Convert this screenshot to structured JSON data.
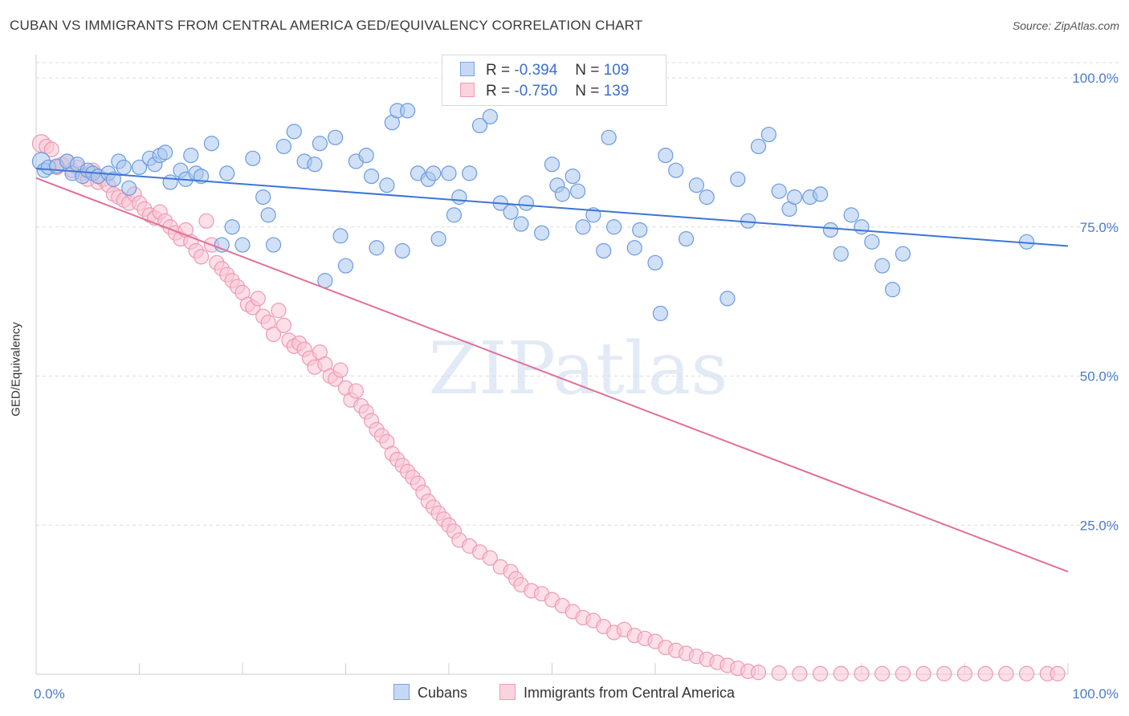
{
  "title": "CUBAN VS IMMIGRANTS FROM CENTRAL AMERICA GED/EQUIVALENCY CORRELATION CHART",
  "source": "Source: ZipAtlas.com",
  "watermark": "ZIPatlas",
  "legend": {
    "rows": [
      {
        "r_label": "R =",
        "r_value": "-0.394",
        "n_label": "N =",
        "n_value": "109",
        "color": "#8fb4ea"
      },
      {
        "r_label": "R =",
        "r_value": "-0.750",
        "n_label": "N =",
        "n_value": "139",
        "color": "#f4a8c0"
      }
    ]
  },
  "bottom_legend": [
    {
      "label": "Cubans",
      "color": "#8fb4ea"
    },
    {
      "label": "Immigrants from Central America",
      "color": "#f4a8c0"
    }
  ],
  "chart_data": {
    "type": "scatter",
    "title": "CUBAN VS IMMIGRANTS FROM CENTRAL AMERICA GED/EQUIVALENCY CORRELATION CHART",
    "xlabel": "",
    "ylabel": "GED/Equivalency",
    "xlim": [
      0,
      100
    ],
    "ylim": [
      0,
      102
    ],
    "x_tick_labels": [
      "0.0%",
      "100.0%"
    ],
    "y_ticks": [
      25,
      50,
      75,
      100
    ],
    "y_tick_labels": [
      "25.0%",
      "50.0%",
      "75.0%",
      "100.0%"
    ],
    "grid": "horizontal dashed",
    "colors": {
      "cubans": "#5b8fdb",
      "cubans_fill": "#a9c6ee",
      "central": "#e2729b",
      "central_fill": "#f7b9cc"
    },
    "series": [
      {
        "name": "Cubans",
        "trend": {
          "x0": 0,
          "y0": 84.8,
          "x1": 100,
          "y1": 71.8
        },
        "points": [
          [
            0.5,
            86
          ],
          [
            0.8,
            84.5
          ],
          [
            1.2,
            85
          ],
          [
            2,
            85.2
          ],
          [
            3,
            86
          ],
          [
            3.5,
            84
          ],
          [
            4,
            85.5
          ],
          [
            4.5,
            83.5
          ],
          [
            5,
            84.5
          ],
          [
            5.5,
            84
          ],
          [
            6,
            83.5
          ],
          [
            7,
            84
          ],
          [
            7.5,
            83
          ],
          [
            8,
            86
          ],
          [
            8.5,
            85
          ],
          [
            9,
            81.5
          ],
          [
            10,
            85
          ],
          [
            11,
            86.5
          ],
          [
            11.5,
            85.5
          ],
          [
            12,
            87
          ],
          [
            12.5,
            87.5
          ],
          [
            13,
            82.5
          ],
          [
            14,
            84.5
          ],
          [
            14.5,
            83
          ],
          [
            15,
            87
          ],
          [
            15.5,
            84
          ],
          [
            16,
            83.5
          ],
          [
            17,
            89
          ],
          [
            18,
            72
          ],
          [
            18.5,
            84
          ],
          [
            19,
            75
          ],
          [
            20,
            72
          ],
          [
            21,
            86.5
          ],
          [
            22,
            80
          ],
          [
            22.5,
            77
          ],
          [
            23,
            72
          ],
          [
            24,
            88.5
          ],
          [
            25,
            91
          ],
          [
            26,
            86
          ],
          [
            27,
            85.5
          ],
          [
            27.5,
            89
          ],
          [
            28,
            66
          ],
          [
            29,
            90
          ],
          [
            29.5,
            73.5
          ],
          [
            30,
            68.5
          ],
          [
            31,
            86
          ],
          [
            32,
            87
          ],
          [
            32.5,
            83.5
          ],
          [
            33,
            71.5
          ],
          [
            34,
            82
          ],
          [
            34.5,
            92.5
          ],
          [
            35,
            94.5
          ],
          [
            35.5,
            71
          ],
          [
            36,
            94.5
          ],
          [
            37,
            84
          ],
          [
            38,
            83
          ],
          [
            38.5,
            84
          ],
          [
            39,
            73
          ],
          [
            40,
            84
          ],
          [
            40.5,
            77
          ],
          [
            41,
            80
          ],
          [
            42,
            84
          ],
          [
            43,
            92
          ],
          [
            44,
            93.5
          ],
          [
            45,
            79
          ],
          [
            46,
            77.5
          ],
          [
            47,
            75.5
          ],
          [
            47.5,
            79
          ],
          [
            49,
            74
          ],
          [
            50,
            85.5
          ],
          [
            50.5,
            82
          ],
          [
            51,
            80.5
          ],
          [
            52,
            83.5
          ],
          [
            52.5,
            81
          ],
          [
            53,
            75
          ],
          [
            54,
            77
          ],
          [
            55,
            71
          ],
          [
            55.5,
            90
          ],
          [
            56,
            75
          ],
          [
            58,
            71.5
          ],
          [
            58.5,
            74.5
          ],
          [
            60,
            69
          ],
          [
            60.5,
            60.5
          ],
          [
            61,
            87
          ],
          [
            62,
            84.5
          ],
          [
            63,
            73
          ],
          [
            64,
            82
          ],
          [
            65,
            80
          ],
          [
            67,
            63
          ],
          [
            68,
            83
          ],
          [
            69,
            76
          ],
          [
            70,
            88.5
          ],
          [
            71,
            90.5
          ],
          [
            72,
            81
          ],
          [
            73,
            78
          ],
          [
            73.5,
            80
          ],
          [
            75,
            80
          ],
          [
            76,
            80.5
          ],
          [
            77,
            74.5
          ],
          [
            78,
            70.5
          ],
          [
            79,
            77
          ],
          [
            80,
            75
          ],
          [
            81,
            72.5
          ],
          [
            82,
            68.5
          ],
          [
            83,
            64.5
          ],
          [
            84,
            70.5
          ],
          [
            96,
            72.5
          ]
        ]
      },
      {
        "name": "Immigrants from Central America",
        "trend": {
          "x0": 0,
          "y0": 83.2,
          "x1": 100,
          "y1": 17.2
        },
        "points": [
          [
            0.5,
            89
          ],
          [
            1,
            88.5
          ],
          [
            1.5,
            88
          ],
          [
            2,
            85
          ],
          [
            2.5,
            85.5
          ],
          [
            3,
            86
          ],
          [
            3.5,
            84.5
          ],
          [
            4,
            85
          ],
          [
            4.5,
            84
          ],
          [
            5,
            83
          ],
          [
            5.5,
            84.5
          ],
          [
            6,
            82.5
          ],
          [
            6.5,
            83
          ],
          [
            7,
            82
          ],
          [
            7.5,
            80.5
          ],
          [
            8,
            80
          ],
          [
            8.5,
            79.5
          ],
          [
            9,
            79
          ],
          [
            9.5,
            80.5
          ],
          [
            10,
            79
          ],
          [
            10.5,
            78
          ],
          [
            11,
            77
          ],
          [
            11.5,
            76.5
          ],
          [
            12,
            77.5
          ],
          [
            12.5,
            76
          ],
          [
            13,
            75
          ],
          [
            13.5,
            74
          ],
          [
            14,
            73
          ],
          [
            14.5,
            74.5
          ],
          [
            15,
            72.5
          ],
          [
            15.5,
            71
          ],
          [
            16,
            70
          ],
          [
            16.5,
            76
          ],
          [
            17,
            72
          ],
          [
            17.5,
            69
          ],
          [
            18,
            68
          ],
          [
            18.5,
            67
          ],
          [
            19,
            66
          ],
          [
            19.5,
            65
          ],
          [
            20,
            64
          ],
          [
            20.5,
            62
          ],
          [
            21,
            61.5
          ],
          [
            21.5,
            63
          ],
          [
            22,
            60
          ],
          [
            22.5,
            59
          ],
          [
            23,
            57
          ],
          [
            23.5,
            61
          ],
          [
            24,
            58.5
          ],
          [
            24.5,
            56
          ],
          [
            25,
            55
          ],
          [
            25.5,
            55.5
          ],
          [
            26,
            54.5
          ],
          [
            26.5,
            53
          ],
          [
            27,
            51.5
          ],
          [
            27.5,
            54
          ],
          [
            28,
            52
          ],
          [
            28.5,
            50
          ],
          [
            29,
            49.5
          ],
          [
            29.5,
            51
          ],
          [
            30,
            48
          ],
          [
            30.5,
            46
          ],
          [
            31,
            47.5
          ],
          [
            31.5,
            45
          ],
          [
            32,
            44
          ],
          [
            32.5,
            42.5
          ],
          [
            33,
            41
          ],
          [
            33.5,
            40
          ],
          [
            34,
            39
          ],
          [
            34.5,
            37
          ],
          [
            35,
            36
          ],
          [
            35.5,
            35
          ],
          [
            36,
            34
          ],
          [
            36.5,
            33
          ],
          [
            37,
            32
          ],
          [
            37.5,
            30.5
          ],
          [
            38,
            29
          ],
          [
            38.5,
            28
          ],
          [
            39,
            27
          ],
          [
            39.5,
            26
          ],
          [
            40,
            25
          ],
          [
            40.5,
            24
          ],
          [
            41,
            22.5
          ],
          [
            42,
            21.5
          ],
          [
            43,
            20.5
          ],
          [
            44,
            19.5
          ],
          [
            45,
            18
          ],
          [
            46,
            17.2
          ],
          [
            46.5,
            16
          ],
          [
            47,
            15
          ],
          [
            48,
            14
          ],
          [
            49,
            13.5
          ],
          [
            50,
            12.5
          ],
          [
            51,
            11.5
          ],
          [
            52,
            10.5
          ],
          [
            53,
            9.5
          ],
          [
            54,
            9
          ],
          [
            55,
            8
          ],
          [
            56,
            7
          ],
          [
            57,
            7.5
          ],
          [
            58,
            6.5
          ],
          [
            59,
            6
          ],
          [
            60,
            5.5
          ],
          [
            61,
            4.5
          ],
          [
            62,
            4
          ],
          [
            63,
            3.5
          ],
          [
            64,
            3
          ],
          [
            65,
            2.5
          ],
          [
            66,
            2
          ],
          [
            67,
            1.5
          ],
          [
            68,
            1
          ],
          [
            69,
            0.5
          ],
          [
            70,
            0.3
          ],
          [
            72,
            0.2
          ],
          [
            74,
            0.1
          ],
          [
            76,
            0.1
          ],
          [
            78,
            0.1
          ],
          [
            80,
            0.1
          ],
          [
            82,
            0.1
          ],
          [
            84,
            0.1
          ],
          [
            86,
            0.1
          ],
          [
            88,
            0.1
          ],
          [
            90,
            0.1
          ],
          [
            92,
            0.1
          ],
          [
            94,
            0.1
          ],
          [
            96,
            0.1
          ],
          [
            98,
            0.1
          ],
          [
            99,
            0.1
          ]
        ]
      }
    ]
  }
}
